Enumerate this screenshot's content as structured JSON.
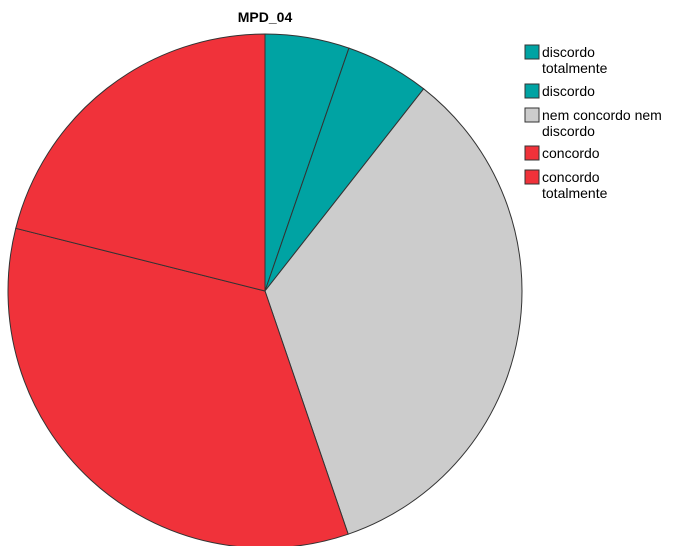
{
  "chart_data": {
    "type": "pie",
    "title": "MPD_04",
    "categories": [
      "discordo totalmente",
      "discordo",
      "nem concordo nem discordo",
      "concordo",
      "concordo totalmente"
    ],
    "legend_lines": [
      [
        "discordo",
        "totalmente"
      ],
      [
        "discordo"
      ],
      [
        "nem concordo nem",
        "discordo"
      ],
      [
        "concordo"
      ],
      [
        "concordo",
        "totalmente"
      ]
    ],
    "values": [
      5.3,
      5.3,
      34.2,
      34.2,
      21.1
    ],
    "unit": "percent",
    "colors": [
      "#00A3A3",
      "#00A3A3",
      "#CCCCCC",
      "#F0323A",
      "#F0323A"
    ],
    "start_angle_deg": 0,
    "direction": "clockwise",
    "legend_position": "top-right"
  }
}
